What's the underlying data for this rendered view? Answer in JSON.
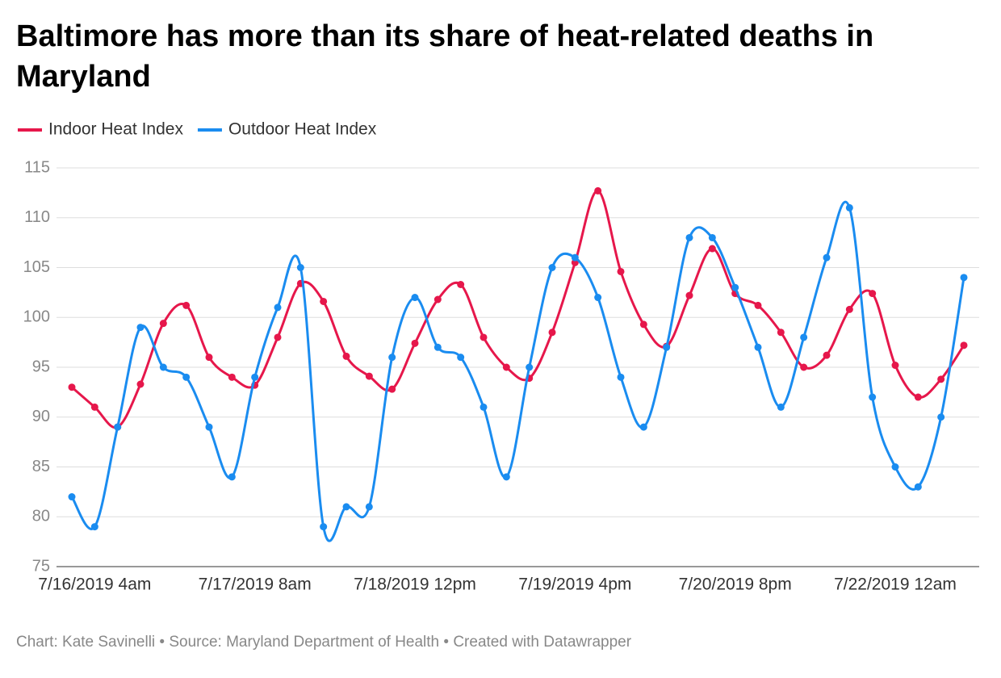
{
  "chart_data": {
    "type": "line",
    "title": "Baltimore has more than its share of heat-related deaths in Maryland",
    "footer": "Chart: Kate Savinelli • Source: Maryland Department of Health • Created with Datawrapper",
    "categories": [
      null,
      "7/16/2019 4am",
      null,
      null,
      null,
      null,
      null,
      null,
      "7/17/2019 8am",
      null,
      null,
      null,
      null,
      null,
      null,
      "7/18/2019 12pm",
      null,
      null,
      null,
      null,
      null,
      null,
      "7/19/2019 4pm",
      null,
      null,
      null,
      null,
      null,
      null,
      "7/20/2019 8pm",
      null,
      null,
      null,
      null,
      null,
      null,
      "7/22/2019 12am",
      null,
      null,
      null
    ],
    "series": [
      {
        "name": "Indoor Heat Index",
        "color": "#e6174b",
        "values": [
          93,
          91,
          89,
          93.3,
          99.4,
          101.2,
          96,
          94,
          93.2,
          98,
          103.4,
          101.6,
          96.1,
          94.1,
          92.8,
          97.4,
          101.8,
          103.3,
          98,
          95,
          93.9,
          98.5,
          105.5,
          112.7,
          104.6,
          99.3,
          97.1,
          102.2,
          106.9,
          102.4,
          101.2,
          98.5,
          95,
          96.2,
          100.8,
          102.4,
          95.2,
          92,
          93.8,
          97.2
        ]
      },
      {
        "name": "Outdoor Heat Index",
        "color": "#1a8cf0",
        "values": [
          82,
          79,
          89,
          99,
          95,
          94,
          89,
          84,
          94,
          101,
          105,
          79,
          81,
          81,
          96,
          102,
          97,
          96,
          91,
          84,
          95,
          105,
          106,
          102,
          94,
          89,
          97,
          108,
          108,
          103,
          97,
          91,
          98,
          106,
          111,
          92,
          85,
          83,
          90,
          104
        ]
      }
    ],
    "ylim": [
      75,
      115
    ],
    "yticks": [
      75,
      80,
      85,
      90,
      95,
      100,
      105,
      110,
      115
    ],
    "grid": true,
    "legend": "top-left"
  }
}
